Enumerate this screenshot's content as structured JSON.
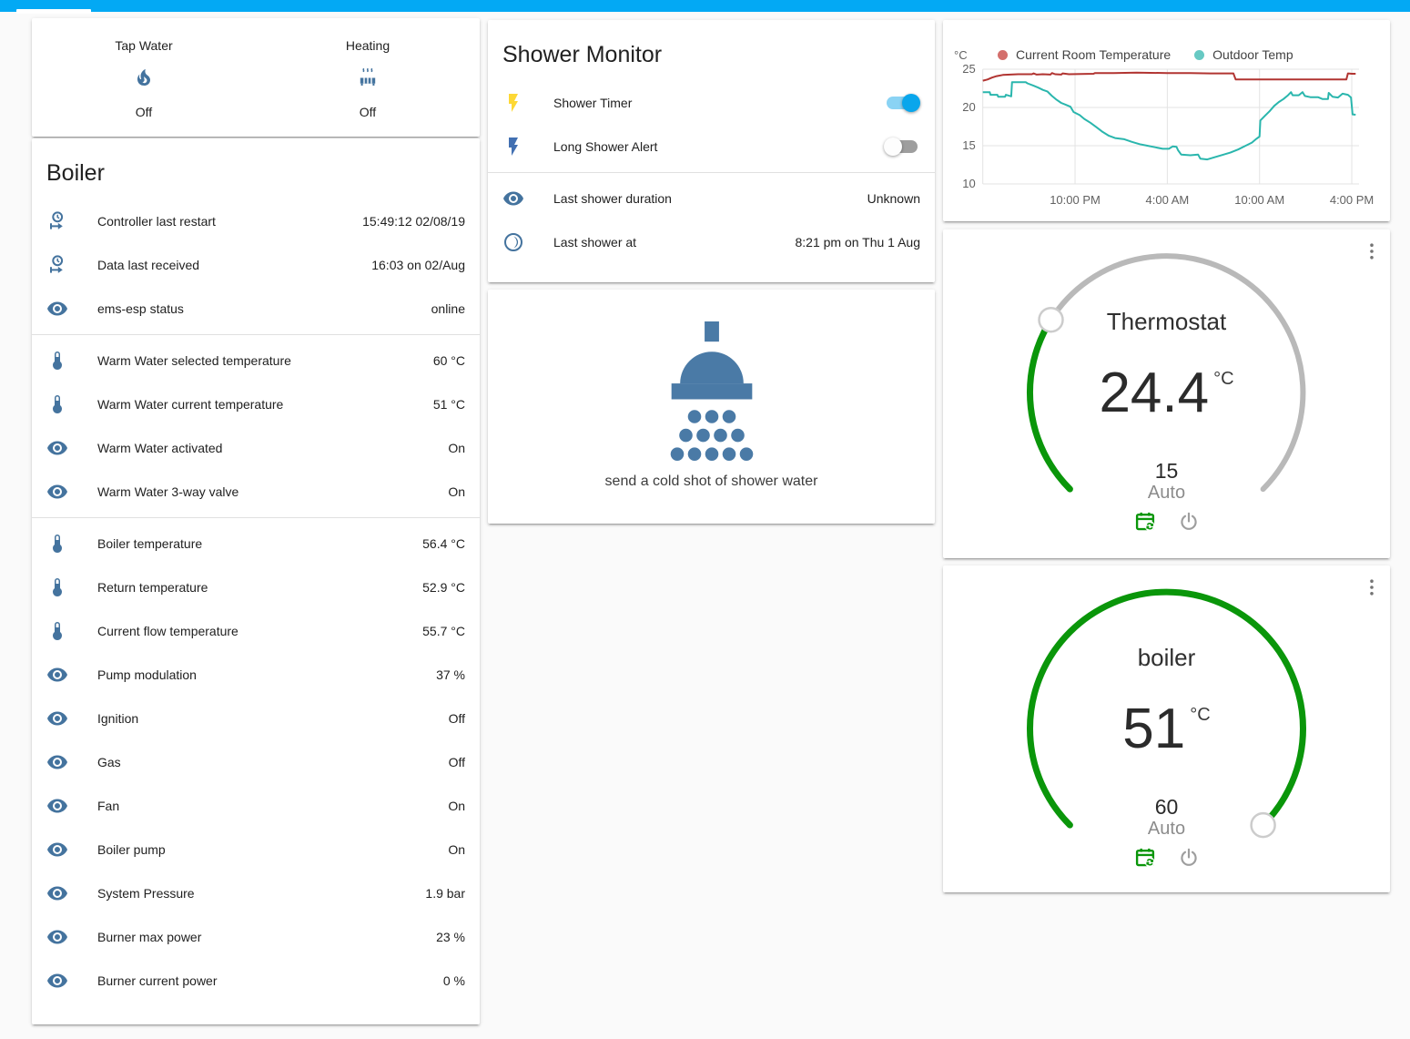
{
  "colors": {
    "accent": "#03a9f4",
    "icon_blue": "#44739e",
    "green": "#0a960a",
    "arc_gray": "#b9b9b9",
    "grid": "#e3e3e3"
  },
  "status_card": {
    "items": [
      {
        "name": "Tap Water",
        "icon": "fire-icon",
        "state": "Off"
      },
      {
        "name": "Heating",
        "icon": "radiator-icon",
        "state": "Off"
      }
    ]
  },
  "boiler_card": {
    "title": "Boiler",
    "rows": [
      {
        "icon": "clock-start-icon",
        "label": "Controller last restart",
        "value": "15:49:12 02/08/19"
      },
      {
        "icon": "clock-start-icon",
        "label": "Data last received",
        "value": "16:03 on 02/Aug"
      },
      {
        "icon": "eye-icon",
        "label": "ems-esp status",
        "value": "online",
        "divider_after": true
      },
      {
        "icon": "thermometer-icon",
        "label": "Warm Water selected temperature",
        "value": "60 °C"
      },
      {
        "icon": "thermometer-icon",
        "label": "Warm Water current temperature",
        "value": "51 °C"
      },
      {
        "icon": "eye-icon",
        "label": "Warm Water activated",
        "value": "On"
      },
      {
        "icon": "eye-icon",
        "label": "Warm Water 3-way valve",
        "value": "On",
        "divider_after": true
      },
      {
        "icon": "thermometer-icon",
        "label": "Boiler temperature",
        "value": "56.4 °C"
      },
      {
        "icon": "thermometer-icon",
        "label": "Return temperature",
        "value": "52.9 °C"
      },
      {
        "icon": "thermometer-icon",
        "label": "Current flow temperature",
        "value": "55.7 °C"
      },
      {
        "icon": "eye-icon",
        "label": "Pump modulation",
        "value": "37 %"
      },
      {
        "icon": "eye-icon",
        "label": "Ignition",
        "value": "Off"
      },
      {
        "icon": "eye-icon",
        "label": "Gas",
        "value": "Off"
      },
      {
        "icon": "eye-icon",
        "label": "Fan",
        "value": "On"
      },
      {
        "icon": "eye-icon",
        "label": "Boiler pump",
        "value": "On"
      },
      {
        "icon": "eye-icon",
        "label": "System Pressure",
        "value": "1.9 bar"
      },
      {
        "icon": "eye-icon",
        "label": "Burner max power",
        "value": "23 %"
      },
      {
        "icon": "eye-icon",
        "label": "Burner current power",
        "value": "0 %"
      }
    ]
  },
  "shower_monitor": {
    "title": "Shower Monitor",
    "rows": [
      {
        "icon": "flash-icon",
        "icon_color": "#fdd835",
        "label": "Shower Timer",
        "toggle": true,
        "on": true
      },
      {
        "icon": "flash-icon",
        "icon_color": "#4270b2",
        "label": "Long Shower Alert",
        "toggle": true,
        "on": false,
        "divider_after": true
      },
      {
        "icon": "eye-icon",
        "label": "Last shower duration",
        "value": "Unknown"
      },
      {
        "icon": "moon-icon",
        "label": "Last shower at",
        "value": "8:21 pm on Thu 1 Aug"
      }
    ]
  },
  "shower_action": {
    "label": "send a cold shot of shower water"
  },
  "chart_data": {
    "type": "line",
    "ylabel": "°C",
    "ylim": [
      10,
      25
    ],
    "yticks": [
      25,
      20,
      15,
      10
    ],
    "xticks": [
      {
        "t": 6,
        "label": "10:00 PM"
      },
      {
        "t": 12,
        "label": "4:00 AM"
      },
      {
        "t": 18,
        "label": "10:00 AM"
      },
      {
        "t": 24,
        "label": "4:00 PM"
      }
    ],
    "grid": true,
    "legend_position": "top",
    "series": [
      {
        "name": "Current Room Temperature",
        "color": "#b13431",
        "dot_color": "#d46f6c",
        "points": [
          [
            0,
            23.5
          ],
          [
            0.3,
            23.65
          ],
          [
            0.6,
            23.9
          ],
          [
            0.9,
            24.1
          ],
          [
            1.3,
            24.25
          ],
          [
            1.8,
            24.3
          ],
          [
            2.3,
            24.35
          ],
          [
            3.2,
            24.35
          ],
          [
            3.3,
            24.45
          ],
          [
            3.5,
            24.3
          ],
          [
            3.9,
            24.35
          ],
          [
            4.4,
            24.3
          ],
          [
            4.5,
            24.5
          ],
          [
            4.7,
            24.35
          ],
          [
            5.1,
            24.3
          ],
          [
            5.2,
            24.45
          ],
          [
            5.6,
            24.35
          ],
          [
            7.2,
            24.4
          ],
          [
            7.3,
            24.5
          ],
          [
            8.5,
            24.5
          ],
          [
            10,
            24.55
          ],
          [
            12,
            24.5
          ],
          [
            13.5,
            24.5
          ],
          [
            14.8,
            24.45
          ],
          [
            16.3,
            24.45
          ],
          [
            16.45,
            23.65
          ],
          [
            23.65,
            23.65
          ],
          [
            23.75,
            24.45
          ],
          [
            24.0,
            24.4
          ],
          [
            24.25,
            24.4
          ]
        ]
      },
      {
        "name": "Outdoor Temp",
        "color": "#2ab6ad",
        "dot_color": "#67c9c3",
        "points": [
          [
            0,
            22.0
          ],
          [
            0.45,
            22.0
          ],
          [
            0.5,
            21.65
          ],
          [
            0.95,
            21.65
          ],
          [
            1.0,
            21.4
          ],
          [
            1.45,
            21.4
          ],
          [
            1.5,
            21.65
          ],
          [
            1.85,
            21.45
          ],
          [
            1.9,
            23.3
          ],
          [
            2.8,
            23.3
          ],
          [
            2.9,
            23.15
          ],
          [
            3.3,
            22.85
          ],
          [
            3.6,
            22.6
          ],
          [
            3.9,
            22.3
          ],
          [
            4.2,
            22.1
          ],
          [
            4.5,
            21.5
          ],
          [
            4.8,
            21.0
          ],
          [
            5.1,
            20.6
          ],
          [
            5.4,
            20.35
          ],
          [
            5.7,
            20.1
          ],
          [
            5.9,
            19.4
          ],
          [
            6.3,
            19.0
          ],
          [
            6.6,
            18.5
          ],
          [
            7.0,
            18.0
          ],
          [
            7.4,
            17.4
          ],
          [
            7.8,
            16.8
          ],
          [
            8.2,
            16.3
          ],
          [
            8.6,
            16.0
          ],
          [
            9.2,
            15.85
          ],
          [
            9.7,
            15.5
          ],
          [
            10.2,
            15.2
          ],
          [
            10.7,
            15.0
          ],
          [
            11.2,
            14.8
          ],
          [
            11.7,
            14.6
          ],
          [
            12.1,
            14.6
          ],
          [
            12.35,
            14.9
          ],
          [
            12.6,
            14.85
          ],
          [
            12.7,
            14.4
          ],
          [
            12.9,
            13.85
          ],
          [
            13.5,
            13.75
          ],
          [
            14.0,
            13.85
          ],
          [
            14.15,
            13.3
          ],
          [
            14.6,
            13.2
          ],
          [
            15.1,
            13.5
          ],
          [
            15.6,
            13.8
          ],
          [
            16.1,
            14.1
          ],
          [
            16.6,
            14.5
          ],
          [
            17.1,
            15.0
          ],
          [
            17.5,
            15.4
          ],
          [
            17.8,
            15.9
          ],
          [
            18.0,
            16.2
          ],
          [
            18.05,
            18.3
          ],
          [
            18.35,
            18.9
          ],
          [
            18.65,
            19.5
          ],
          [
            18.95,
            20.2
          ],
          [
            19.25,
            20.7
          ],
          [
            19.55,
            21.1
          ],
          [
            19.85,
            21.6
          ],
          [
            20.05,
            22.0
          ],
          [
            20.15,
            21.6
          ],
          [
            20.55,
            21.6
          ],
          [
            20.8,
            22.0
          ],
          [
            20.95,
            21.5
          ],
          [
            21.3,
            21.35
          ],
          [
            21.8,
            21.35
          ],
          [
            22.1,
            21.1
          ],
          [
            22.45,
            21.1
          ],
          [
            22.5,
            21.9
          ],
          [
            22.75,
            21.4
          ],
          [
            23.1,
            21.3
          ],
          [
            23.4,
            21.8
          ],
          [
            23.75,
            21.65
          ],
          [
            23.95,
            21.3
          ],
          [
            24.05,
            19.1
          ],
          [
            24.25,
            19.05
          ]
        ]
      }
    ]
  },
  "thermostat_gauge": {
    "title": "Thermostat",
    "value": "24.4",
    "unit": "°C",
    "target": "15",
    "target_value": 15,
    "min": 7,
    "max": 35,
    "mode": "Auto"
  },
  "boiler_gauge": {
    "title": "boiler",
    "value": "51",
    "unit": "°C",
    "target": "60",
    "target_value": 60,
    "min": 0,
    "max": 60,
    "mode": "Auto"
  }
}
